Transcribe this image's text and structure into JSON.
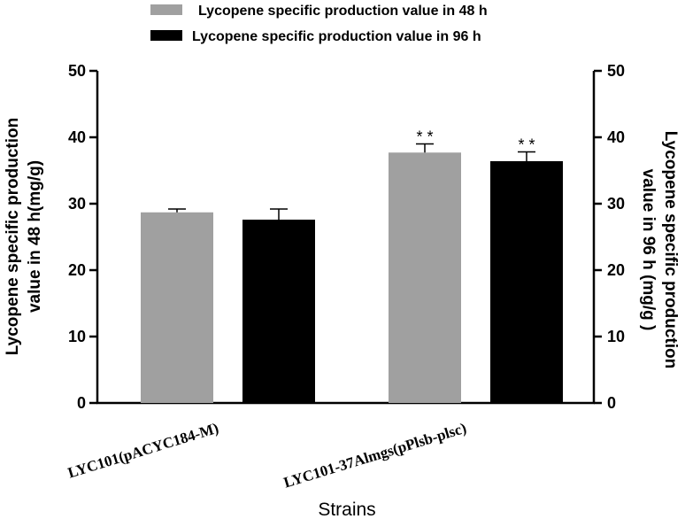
{
  "chart_data": {
    "type": "bar",
    "categories": [
      "LYC101(pACYC184-M)",
      "LYC101-37Almgs(pPlsb-plsc)"
    ],
    "series": [
      {
        "name": "Lycopene specific production value in 48 h",
        "color": "#a0a0a0",
        "values": [
          28.7,
          37.7
        ],
        "errors": [
          0.5,
          1.3
        ],
        "significance": [
          "",
          "* *"
        ]
      },
      {
        "name": "Lycopene specific production value in 96 h",
        "color": "#000000",
        "values": [
          27.6,
          36.4
        ],
        "errors": [
          1.6,
          1.4
        ],
        "significance": [
          "",
          "* *"
        ]
      }
    ],
    "xlabel": "Strains",
    "ylabel_left": [
      "Lycopene specific production",
      "value in 48 h(mg/g)"
    ],
    "ylabel_right": [
      "Lycopene specific production",
      "value in 96 h (mg/g )"
    ],
    "ylim": [
      0,
      50
    ],
    "yticks": [
      "0",
      "10",
      "20",
      "30",
      "40",
      "50"
    ],
    "legend_position": "top-center",
    "grid": false
  }
}
